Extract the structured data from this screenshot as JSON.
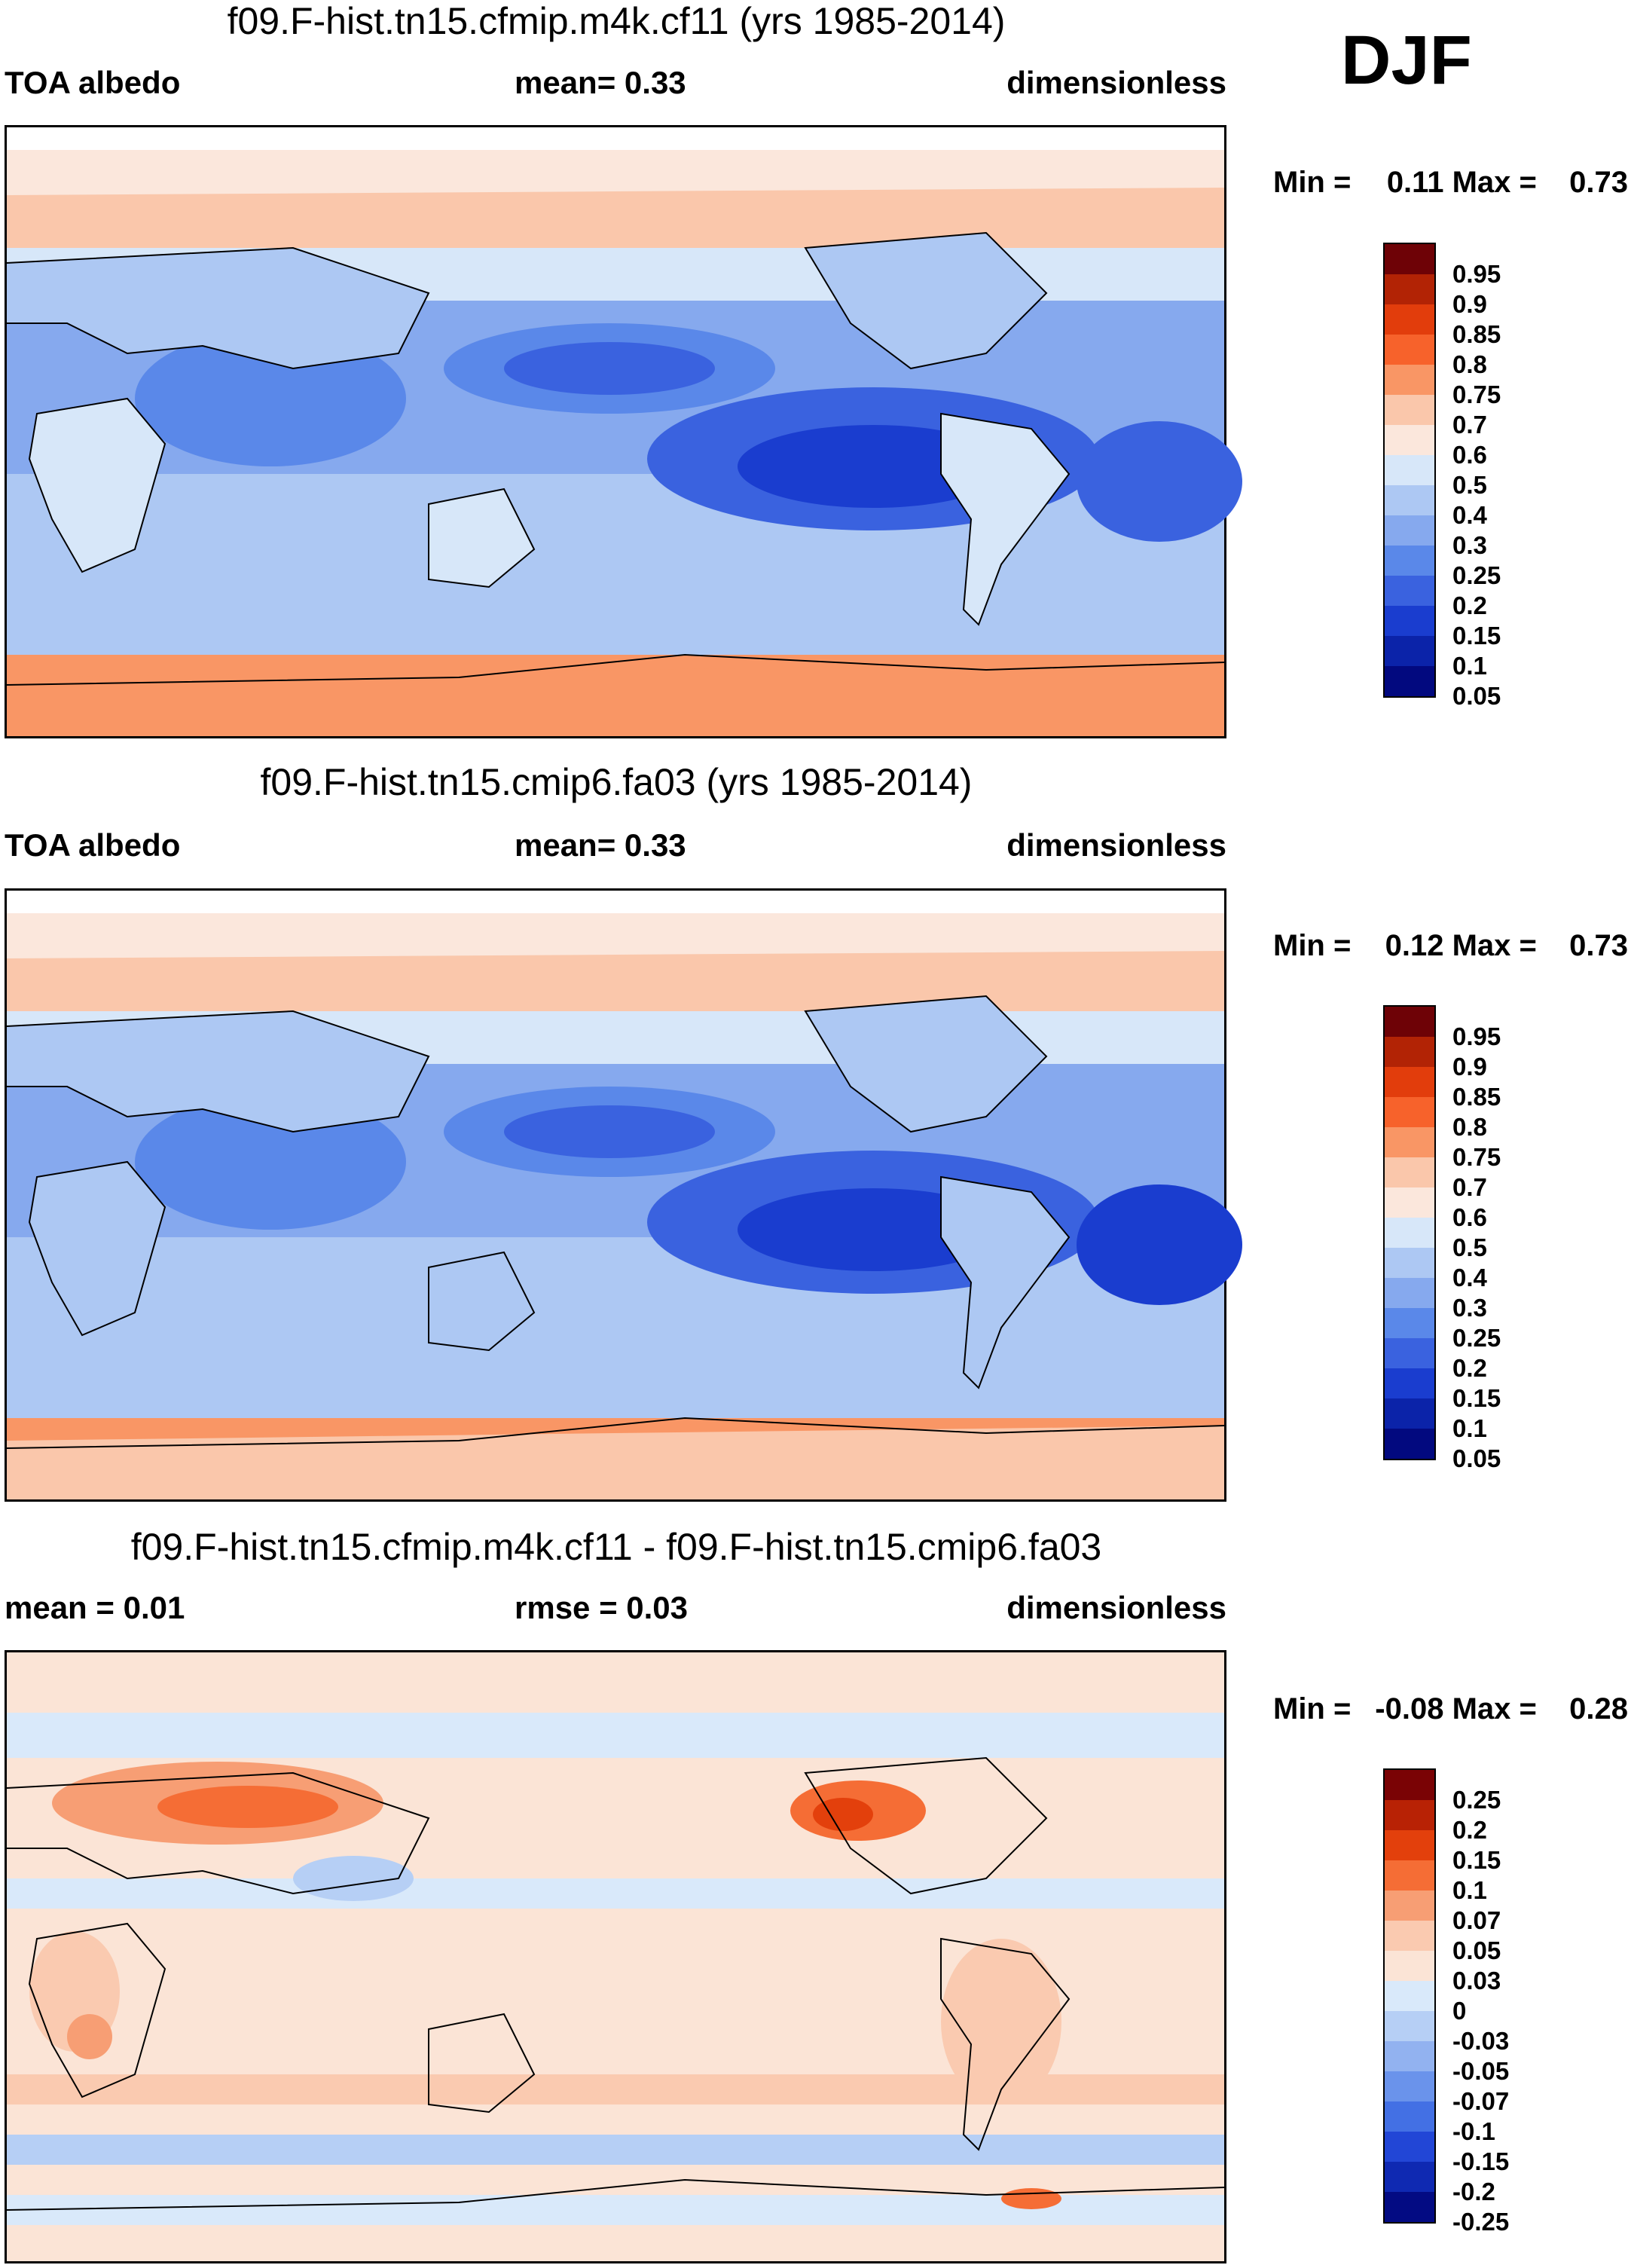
{
  "season": "DJF",
  "palette_abs": [
    "#6e0206",
    "#b22305",
    "#e23d0c",
    "#f7622b",
    "#f99665",
    "#fac7ab",
    "#fbe7dc",
    "#d7e7f9",
    "#adc8f3",
    "#86a9ee",
    "#5a88e9",
    "#3a62df",
    "#1a3dcf",
    "#0b23a9",
    "#02097f"
  ],
  "palette_diff": [
    "#7a0305",
    "#b82205",
    "#e3400c",
    "#f56d35",
    "#f79e74",
    "#facab0",
    "#fbe4d6",
    "#d9e9fa",
    "#b6cff5",
    "#92b2f0",
    "#6a93eb",
    "#4370e4",
    "#2246d6",
    "#0f29b2",
    "#030b83"
  ],
  "panels": [
    {
      "title": "f09.F-hist.tn15.cfmip.m4k.cf11 (yrs 1985-2014)",
      "left_label": "TOA albedo",
      "center_label": "mean=   0.33",
      "right_label": "dimensionless",
      "min_label": "Min =",
      "min_value": "0.11",
      "max_label": "Max =",
      "max_value": "0.73",
      "colorbar_ticks": [
        "0.95",
        "0.9",
        "0.85",
        "0.8",
        "0.75",
        "0.7",
        "0.6",
        "0.5",
        "0.4",
        "0.3",
        "0.25",
        "0.2",
        "0.15",
        "0.1",
        "0.05"
      ]
    },
    {
      "title": "f09.F-hist.tn15.cmip6.fa03 (yrs 1985-2014)",
      "left_label": "TOA albedo",
      "center_label": "mean=   0.33",
      "right_label": "dimensionless",
      "min_label": "Min =",
      "min_value": "0.12",
      "max_label": "Max =",
      "max_value": "0.73",
      "colorbar_ticks": [
        "0.95",
        "0.9",
        "0.85",
        "0.8",
        "0.75",
        "0.7",
        "0.6",
        "0.5",
        "0.4",
        "0.3",
        "0.25",
        "0.2",
        "0.15",
        "0.1",
        "0.05"
      ]
    },
    {
      "title": "f09.F-hist.tn15.cfmip.m4k.cf11 - f09.F-hist.tn15.cmip6.fa03",
      "left_label": "mean =   0.01",
      "center_label": "rmse =   0.03",
      "right_label": "dimensionless",
      "min_label": "Min =",
      "min_value": "-0.08",
      "max_label": "Max =",
      "max_value": "0.28",
      "colorbar_ticks": [
        "0.25",
        "0.2",
        "0.15",
        "0.1",
        "0.07",
        "0.05",
        "0.03",
        "0",
        "-0.03",
        "-0.05",
        "-0.07",
        "-0.1",
        "-0.15",
        "-0.2",
        "-0.25"
      ]
    }
  ]
}
